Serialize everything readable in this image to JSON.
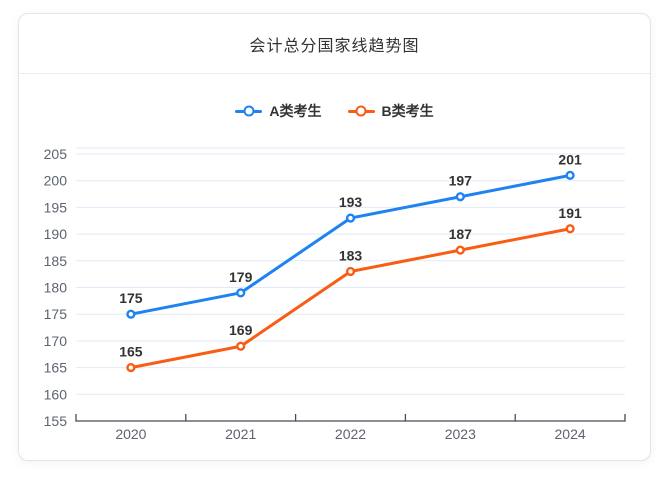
{
  "title": "会计总分国家线趋势图",
  "legend": {
    "items": [
      "A类考生",
      "B类考生"
    ]
  },
  "chart_data": {
    "type": "line",
    "title": "会计总分国家线趋势图",
    "categories": [
      "2020",
      "2021",
      "2022",
      "2023",
      "2024"
    ],
    "series": [
      {
        "name": "A类考生",
        "color": "#1e82f0",
        "values": [
          175,
          179,
          193,
          197,
          201
        ]
      },
      {
        "name": "B类考生",
        "color": "#f85d14",
        "values": [
          165,
          169,
          183,
          187,
          191
        ]
      }
    ],
    "ylim": [
      155,
      205
    ],
    "yticks": [
      155,
      160,
      165,
      170,
      175,
      180,
      185,
      190,
      195,
      200,
      205
    ],
    "xlabel": "",
    "ylabel": "",
    "grid": true,
    "legend_position": "top",
    "data_labels": true,
    "marker": "hollow-circle"
  },
  "colors": {
    "series_a": "#1e82f0",
    "series_b": "#f85d14",
    "gridline": "#e3e9f6",
    "axis_line": "#474d58",
    "tick_label": "#5d6370",
    "text": "#333333",
    "card_border": "#e4e4e4",
    "card_background": "#ffffff"
  }
}
